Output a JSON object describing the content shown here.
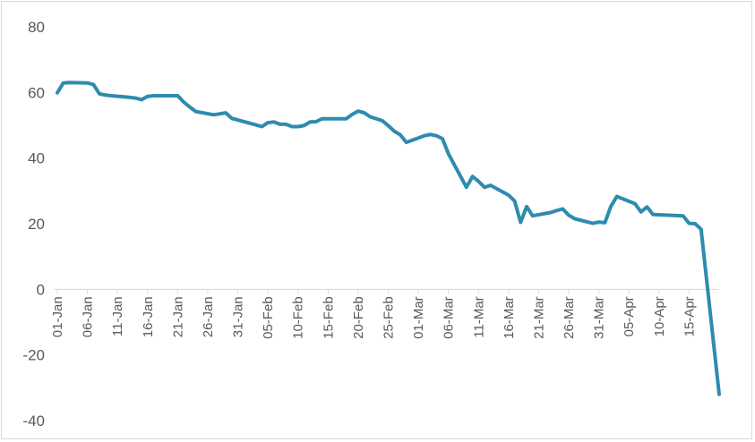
{
  "chart_data": {
    "type": "line",
    "title": "",
    "xlabel": "",
    "ylabel": "",
    "ylim": [
      -40,
      80
    ],
    "yticks": [
      80,
      60,
      40,
      20,
      0,
      -20,
      -40
    ],
    "x_tick_labels": [
      "01-Jan",
      "06-Jan",
      "11-Jan",
      "16-Jan",
      "21-Jan",
      "26-Jan",
      "31-Jan",
      "05-Feb",
      "10-Feb",
      "15-Feb",
      "20-Feb",
      "25-Feb",
      "01-Mar",
      "06-Mar",
      "11-Mar",
      "16-Mar",
      "21-Mar",
      "26-Mar",
      "31-Mar",
      "05-Apr",
      "10-Apr",
      "15-Apr"
    ],
    "grid": false,
    "legend": "none",
    "series_color": "#2E8BAE",
    "series": [
      {
        "values": [
          [
            "01-Jan",
            59.9
          ],
          [
            "02-Jan",
            62.9
          ],
          [
            "03-Jan",
            63.0
          ],
          [
            "06-Jan",
            62.9
          ],
          [
            "07-Jan",
            62.4
          ],
          [
            "08-Jan",
            59.6
          ],
          [
            "09-Jan",
            59.2
          ],
          [
            "10-Jan",
            59.0
          ],
          [
            "13-Jan",
            58.5
          ],
          [
            "14-Jan",
            58.3
          ],
          [
            "15-Jan",
            57.8
          ],
          [
            "16-Jan",
            58.8
          ],
          [
            "17-Jan",
            59.0
          ],
          [
            "21-Jan",
            59.0
          ],
          [
            "22-Jan",
            57.1
          ],
          [
            "23-Jan",
            55.6
          ],
          [
            "24-Jan",
            54.2
          ],
          [
            "27-Jan",
            53.2
          ],
          [
            "28-Jan",
            53.5
          ],
          [
            "29-Jan",
            53.8
          ],
          [
            "30-Jan",
            52.1
          ],
          [
            "31-Jan",
            51.6
          ],
          [
            "03-Feb",
            50.1
          ],
          [
            "04-Feb",
            49.6
          ],
          [
            "05-Feb",
            50.8
          ],
          [
            "06-Feb",
            51.0
          ],
          [
            "07-Feb",
            50.3
          ],
          [
            "08-Feb",
            50.3
          ],
          [
            "09-Feb",
            49.6
          ],
          [
            "10-Feb",
            49.6
          ],
          [
            "11-Feb",
            49.9
          ],
          [
            "12-Feb",
            51.0
          ],
          [
            "13-Feb",
            51.1
          ],
          [
            "14-Feb",
            52.0
          ],
          [
            "18-Feb",
            52.0
          ],
          [
            "19-Feb",
            53.3
          ],
          [
            "20-Feb",
            54.3
          ],
          [
            "21-Feb",
            53.8
          ],
          [
            "22-Feb",
            52.6
          ],
          [
            "24-Feb",
            51.4
          ],
          [
            "25-Feb",
            49.9
          ],
          [
            "26-Feb",
            48.2
          ],
          [
            "27-Feb",
            47.1
          ],
          [
            "28-Feb",
            44.8
          ],
          [
            "02-Mar",
            46.8
          ],
          [
            "03-Mar",
            47.2
          ],
          [
            "04-Mar",
            46.8
          ],
          [
            "05-Mar",
            45.9
          ],
          [
            "06-Mar",
            41.3
          ],
          [
            "09-Mar",
            31.1
          ],
          [
            "10-Mar",
            34.4
          ],
          [
            "11-Mar",
            32.9
          ],
          [
            "12-Mar",
            31.1
          ],
          [
            "13-Mar",
            31.7
          ],
          [
            "16-Mar",
            28.7
          ],
          [
            "17-Mar",
            26.9
          ],
          [
            "18-Mar",
            20.4
          ],
          [
            "19-Mar",
            25.2
          ],
          [
            "20-Mar",
            22.4
          ],
          [
            "23-Mar",
            23.4
          ],
          [
            "24-Mar",
            24.0
          ],
          [
            "25-Mar",
            24.5
          ],
          [
            "26-Mar",
            22.6
          ],
          [
            "27-Mar",
            21.5
          ],
          [
            "30-Mar",
            20.1
          ],
          [
            "31-Mar",
            20.5
          ],
          [
            "01-Apr",
            20.3
          ],
          [
            "02-Apr",
            25.3
          ],
          [
            "03-Apr",
            28.3
          ],
          [
            "06-Apr",
            26.1
          ],
          [
            "07-Apr",
            23.6
          ],
          [
            "08-Apr",
            25.1
          ],
          [
            "09-Apr",
            22.8
          ],
          [
            "14-Apr",
            22.4
          ],
          [
            "15-Apr",
            20.1
          ],
          [
            "16-Apr",
            20.0
          ],
          [
            "17-Apr",
            18.3
          ],
          [
            "20-Apr",
            -32.0
          ]
        ]
      }
    ]
  }
}
